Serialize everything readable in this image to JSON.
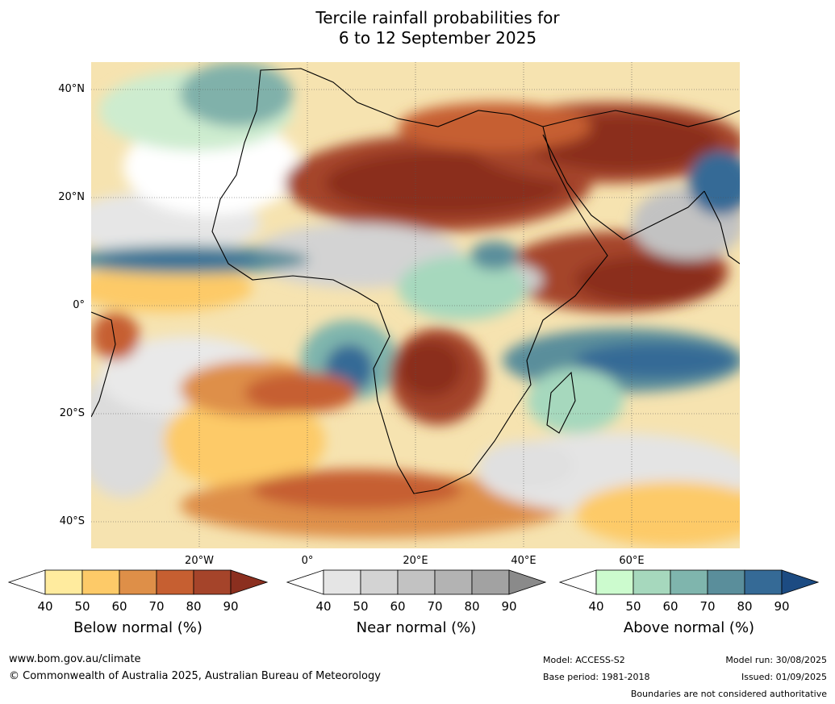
{
  "title_line1": "Tercile rainfall probabilities for",
  "title_line2": "6 to 12 September 2025",
  "lat_labels": [
    "40°N",
    "20°N",
    "0°",
    "20°S",
    "40°S"
  ],
  "lon_labels": [
    "20°W",
    "0°",
    "20°E",
    "40°E",
    "60°E"
  ],
  "colorbars": [
    {
      "title": "Below normal (%)",
      "ticks": [
        "40",
        "50",
        "60",
        "70",
        "80",
        "90"
      ],
      "colors": [
        "#ffffff",
        "#ffeb9e",
        "#fdca68",
        "#de8f48",
        "#c65f31",
        "#a5442a",
        "#8b2f1f"
      ]
    },
    {
      "title": "Near normal (%)",
      "ticks": [
        "40",
        "50",
        "60",
        "70",
        "80",
        "90"
      ],
      "colors": [
        "#ffffff",
        "#e5e5e5",
        "#d3d3d3",
        "#c2c2c2",
        "#b3b3b3",
        "#a2a2a2",
        "#8a8a8a"
      ]
    },
    {
      "title": "Above normal (%)",
      "ticks": [
        "40",
        "50",
        "60",
        "70",
        "80",
        "90"
      ],
      "colors": [
        "#ffffff",
        "#ccfbce",
        "#a6d8bd",
        "#7fb5ad",
        "#5a8e9b",
        "#356a96",
        "#1c4b82"
      ]
    }
  ],
  "footer": {
    "website": "www.bom.gov.au/climate",
    "copyright": "© Commonwealth of Australia 2025, Australian Bureau of Meteorology",
    "model": "Model: ACCESS-S2",
    "base_period": "Base period: 1981-2018",
    "model_run": "Model run: 30/08/2025",
    "issued": "Issued: 01/09/2025",
    "disclaimer": "Boundaries are not considered authoritative"
  }
}
